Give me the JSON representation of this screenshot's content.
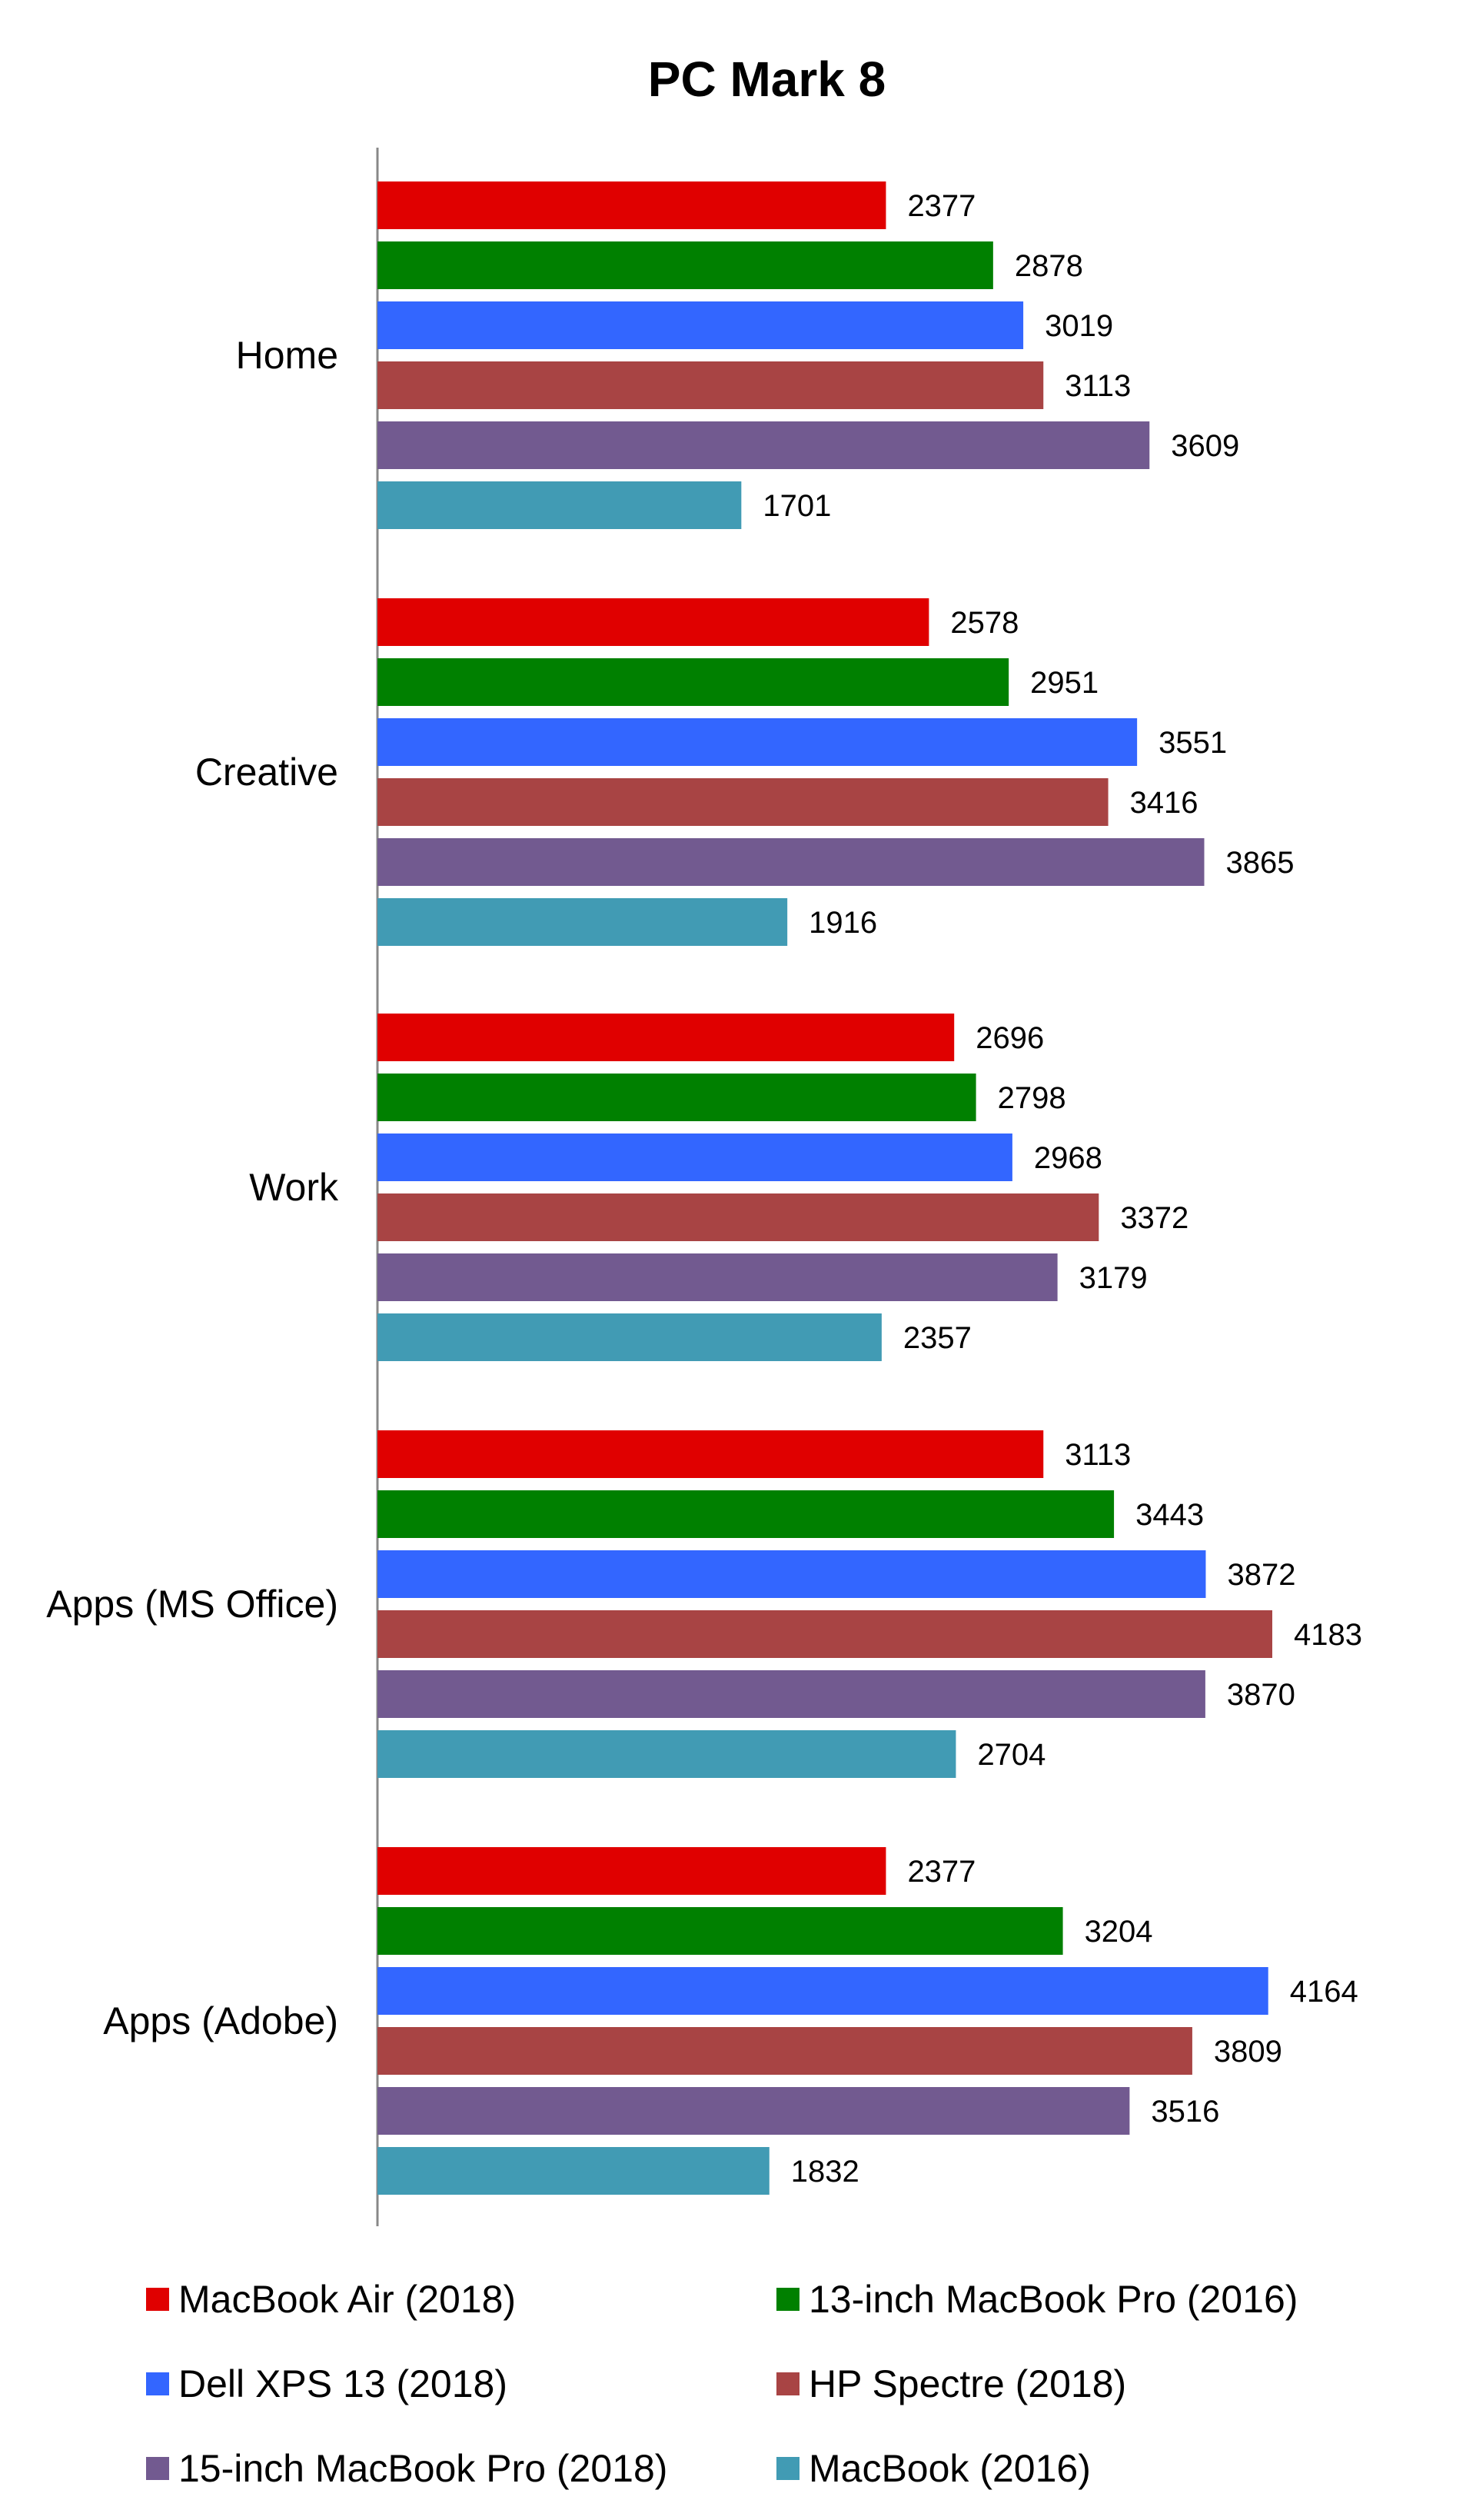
{
  "chart_data": {
    "type": "bar",
    "orientation": "horizontal",
    "title": "PC Mark 8",
    "xlabel": "",
    "ylabel": "",
    "xlim": [
      0,
      4183
    ],
    "grid": false,
    "legend_position": "bottom",
    "categories": [
      "Home",
      "Creative",
      "Work",
      "Apps (MS Office)",
      "Apps (Adobe)"
    ],
    "series": [
      {
        "name": "MacBook Air (2018)",
        "color": "#e00000",
        "values": [
          2377,
          2578,
          2696,
          3113,
          2377
        ]
      },
      {
        "name": "13-inch MacBook Pro (2016)",
        "color": "#008000",
        "values": [
          2878,
          2951,
          2798,
          3443,
          3204
        ]
      },
      {
        "name": "Dell XPS 13 (2018)",
        "color": "#3366ff",
        "values": [
          3019,
          3551,
          2968,
          3872,
          4164
        ]
      },
      {
        "name": "HP Spectre (2018)",
        "color": "#a84444",
        "values": [
          3113,
          3416,
          3372,
          4183,
          3809
        ]
      },
      {
        "name": "15-inch MacBook Pro (2018)",
        "color": "#725a90",
        "values": [
          3609,
          3865,
          3179,
          3870,
          3516
        ]
      },
      {
        "name": "MacBook (2016)",
        "color": "#419bb4",
        "values": [
          1701,
          1916,
          2357,
          2704,
          1832
        ]
      }
    ]
  }
}
